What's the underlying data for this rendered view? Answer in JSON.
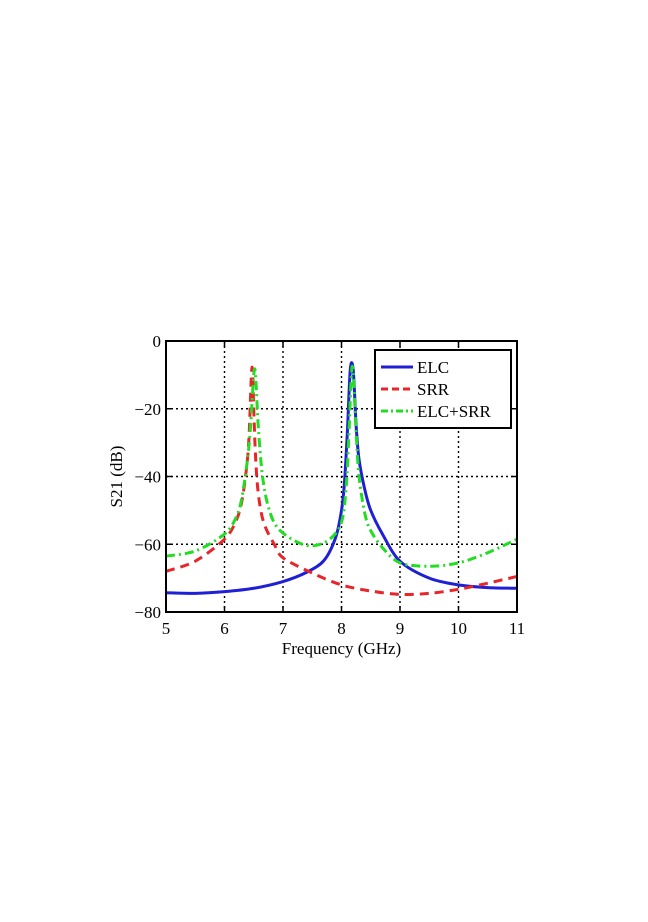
{
  "chart_data": {
    "type": "line",
    "title": "",
    "xlabel": "Frequency (GHz)",
    "ylabel": "S21 (dB)",
    "xlim": [
      5,
      11
    ],
    "ylim": [
      -80,
      0
    ],
    "xticks": [
      5,
      6,
      7,
      8,
      9,
      10,
      11
    ],
    "yticks": [
      0,
      -20,
      -40,
      -60,
      -80
    ],
    "xtick_labels": [
      "5",
      "6",
      "7",
      "8",
      "9",
      "10",
      "11"
    ],
    "ytick_labels": [
      "0",
      "−20",
      "−40",
      "−60",
      "−80"
    ],
    "grid": true,
    "grid_style": "dotted",
    "legend_position": "top-right",
    "series": [
      {
        "name": "ELC",
        "color": "#1f1fd6",
        "line_style": "solid",
        "x": [
          5,
          5.5,
          6,
          6.5,
          7,
          7.4,
          7.7,
          7.9,
          8.0,
          8.05,
          8.1,
          8.15,
          8.2,
          8.25,
          8.3,
          8.4,
          8.5,
          8.7,
          9,
          9.5,
          10,
          10.5,
          11
        ],
        "y": [
          -74.3,
          -74.5,
          -74.0,
          -73.0,
          -71.0,
          -68.3,
          -64.8,
          -58.0,
          -50.0,
          -42.0,
          -27.0,
          -8.5,
          -8.5,
          -25.0,
          -35.0,
          -44.0,
          -50.0,
          -57.0,
          -65.0,
          -70.0,
          -72.0,
          -72.8,
          -73.0
        ]
      },
      {
        "name": "SRR",
        "color": "#e8262a",
        "line_style": "dashed",
        "x": [
          5,
          5.5,
          6,
          6.2,
          6.3,
          6.38,
          6.42,
          6.46,
          6.48,
          6.52,
          6.56,
          6.62,
          6.7,
          6.85,
          7,
          7.5,
          8,
          8.5,
          9,
          9.5,
          10,
          10.5,
          11
        ],
        "y": [
          -68.0,
          -65.0,
          -58.5,
          -53.0,
          -47.0,
          -37.0,
          -28.0,
          -10.0,
          -10.0,
          -30.0,
          -42.0,
          -50.0,
          -55.0,
          -60.0,
          -64.0,
          -68.5,
          -72.0,
          -73.8,
          -74.8,
          -74.5,
          -73.3,
          -71.5,
          -69.5
        ]
      },
      {
        "name": "ELC+SRR",
        "color": "#22dd22",
        "line_style": "dashdot",
        "x": [
          5,
          5.5,
          6,
          6.2,
          6.3,
          6.4,
          6.45,
          6.5,
          6.53,
          6.58,
          6.65,
          6.75,
          6.9,
          7.2,
          7.5,
          7.8,
          8.0,
          8.08,
          8.13,
          8.17,
          8.2,
          8.25,
          8.3,
          8.4,
          8.5,
          8.7,
          9,
          9.5,
          10,
          10.5,
          11
        ],
        "y": [
          -63.5,
          -62.0,
          -57.0,
          -52.0,
          -46.0,
          -34.0,
          -24.0,
          -10.0,
          -10.0,
          -26.0,
          -40.0,
          -49.0,
          -55.0,
          -59.0,
          -60.5,
          -58.5,
          -53.5,
          -43.0,
          -26.0,
          -9.5,
          -9.5,
          -27.0,
          -40.0,
          -51.0,
          -56.0,
          -61.0,
          -65.5,
          -66.5,
          -65.5,
          -62.5,
          -58.5
        ]
      }
    ]
  }
}
